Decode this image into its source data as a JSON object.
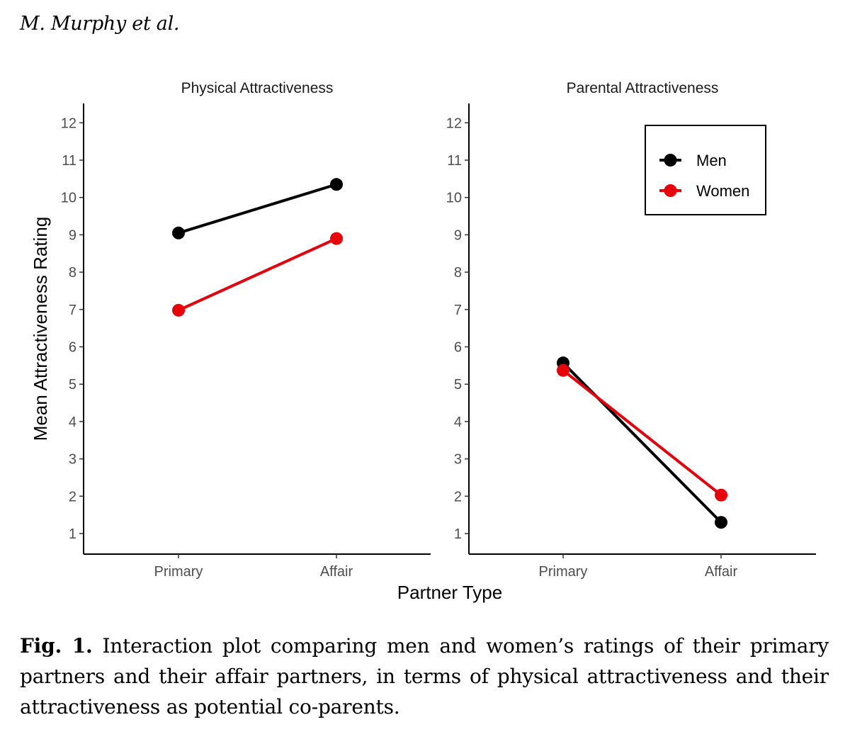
{
  "header": {
    "running_head": "M. Murphy et al."
  },
  "caption": {
    "label": "Fig. 1.",
    "text": "Interaction plot comparing men and women’s ratings of their primary partners and their affair partners, in terms of physical attractiveness and their attractiveness as potential co-parents."
  },
  "chart_data": {
    "type": "line",
    "xlabel": "Partner Type",
    "ylabel": "Mean Attractiveness Rating",
    "categories": [
      "Primary",
      "Affair"
    ],
    "ylim": [
      0.5,
      12.5
    ],
    "yticks": [
      1,
      2,
      3,
      4,
      5,
      6,
      7,
      8,
      9,
      10,
      11,
      12
    ],
    "legend": {
      "placement": "top-right",
      "entries": [
        {
          "name": "Men",
          "color": "#000000"
        },
        {
          "name": "Women",
          "color": "#e8000b"
        }
      ]
    },
    "panels": [
      {
        "title": "Physical Attractiveness",
        "series": [
          {
            "name": "Men",
            "values": [
              9.05,
              10.35
            ]
          },
          {
            "name": "Women",
            "values": [
              6.98,
              8.9
            ]
          }
        ]
      },
      {
        "title": "Parental Attractiveness",
        "series": [
          {
            "name": "Men",
            "values": [
              5.57,
              1.3
            ]
          },
          {
            "name": "Women",
            "values": [
              5.37,
              2.03
            ]
          }
        ]
      }
    ]
  }
}
